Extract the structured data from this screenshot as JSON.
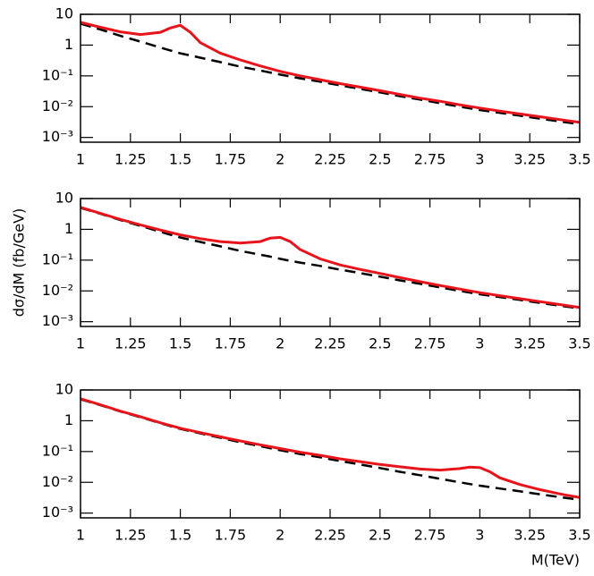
{
  "chart_data": [
    {
      "type": "line",
      "x": [
        1,
        1.1,
        1.2,
        1.3,
        1.4,
        1.45,
        1.5,
        1.55,
        1.6,
        1.7,
        1.8,
        1.9,
        2.0,
        2.1,
        2.2,
        2.3,
        2.4,
        2.5,
        2.6,
        2.7,
        2.8,
        2.9,
        3.0,
        3.1,
        3.2,
        3.3,
        3.4,
        3.5
      ],
      "series": [
        {
          "color": "#000000",
          "dashed": true,
          "values": [
            5.0,
            3.2,
            2.0,
            1.3,
            0.83,
            0.67,
            0.54,
            0.46,
            0.39,
            0.28,
            0.2,
            0.15,
            0.11,
            0.083,
            0.065,
            0.049,
            0.038,
            0.029,
            0.022,
            0.017,
            0.013,
            0.01,
            0.0078,
            0.0063,
            0.0051,
            0.0041,
            0.0033,
            0.0027
          ]
        },
        {
          "color": "#e8141c",
          "dashed": false,
          "values": [
            5.5,
            3.8,
            2.7,
            2.2,
            2.6,
            3.6,
            4.4,
            2.6,
            1.2,
            0.55,
            0.33,
            0.21,
            0.14,
            0.1,
            0.075,
            0.056,
            0.043,
            0.033,
            0.025,
            0.019,
            0.015,
            0.0115,
            0.009,
            0.0072,
            0.0058,
            0.0047,
            0.0038,
            0.0031
          ]
        }
      ],
      "xlim": [
        1,
        3.5
      ],
      "xticks": [
        1,
        1.25,
        1.5,
        1.75,
        2,
        2.25,
        2.5,
        2.75,
        3,
        3.25,
        3.5
      ],
      "ylim": [
        0.0007,
        10
      ],
      "log_y": true,
      "yticks": [
        10,
        1,
        {
          "value": 0.1,
          "label": "10⁻¹"
        },
        {
          "value": 0.01,
          "label": "10⁻²"
        },
        {
          "value": 0.001,
          "label": "10⁻³"
        }
      ]
    },
    {
      "type": "line",
      "x": [
        1,
        1.1,
        1.2,
        1.3,
        1.4,
        1.5,
        1.6,
        1.7,
        1.8,
        1.9,
        1.95,
        2.0,
        2.05,
        2.1,
        2.2,
        2.3,
        2.4,
        2.5,
        2.6,
        2.7,
        2.8,
        2.9,
        3.0,
        3.1,
        3.2,
        3.3,
        3.4,
        3.5
      ],
      "series": [
        {
          "color": "#000000",
          "dashed": true,
          "values": [
            5.0,
            3.2,
            2.0,
            1.3,
            0.83,
            0.54,
            0.39,
            0.28,
            0.2,
            0.15,
            0.13,
            0.11,
            0.095,
            0.083,
            0.065,
            0.049,
            0.038,
            0.029,
            0.022,
            0.017,
            0.013,
            0.01,
            0.0078,
            0.0063,
            0.0051,
            0.0041,
            0.0033,
            0.0027
          ]
        },
        {
          "color": "#e8141c",
          "dashed": false,
          "values": [
            5.2,
            3.3,
            2.1,
            1.4,
            0.95,
            0.66,
            0.5,
            0.4,
            0.36,
            0.4,
            0.52,
            0.55,
            0.4,
            0.22,
            0.11,
            0.07,
            0.05,
            0.037,
            0.027,
            0.02,
            0.015,
            0.0115,
            0.0088,
            0.007,
            0.0056,
            0.0045,
            0.0036,
            0.0029
          ]
        }
      ],
      "ylabel": "dσ/dM (fb/GeV)",
      "xlim": [
        1,
        3.5
      ],
      "xticks": [
        1,
        1.25,
        1.5,
        1.75,
        2,
        2.25,
        2.5,
        2.75,
        3,
        3.25,
        3.5
      ],
      "ylim": [
        0.0007,
        10
      ],
      "log_y": true,
      "yticks": [
        10,
        1,
        {
          "value": 0.1,
          "label": "10⁻¹"
        },
        {
          "value": 0.01,
          "label": "10⁻²"
        },
        {
          "value": 0.001,
          "label": "10⁻³"
        }
      ]
    },
    {
      "type": "line",
      "x": [
        1,
        1.1,
        1.2,
        1.3,
        1.4,
        1.5,
        1.6,
        1.7,
        1.8,
        1.9,
        2.0,
        2.1,
        2.2,
        2.3,
        2.4,
        2.5,
        2.6,
        2.7,
        2.8,
        2.9,
        2.95,
        3.0,
        3.05,
        3.1,
        3.2,
        3.3,
        3.4,
        3.5
      ],
      "series": [
        {
          "color": "#000000",
          "dashed": true,
          "values": [
            5.0,
            3.2,
            2.0,
            1.3,
            0.83,
            0.54,
            0.39,
            0.28,
            0.2,
            0.15,
            0.11,
            0.083,
            0.065,
            0.049,
            0.038,
            0.029,
            0.022,
            0.017,
            0.013,
            0.01,
            0.0088,
            0.0078,
            0.007,
            0.0063,
            0.0051,
            0.0041,
            0.0033,
            0.0027
          ]
        },
        {
          "color": "#e8141c",
          "dashed": false,
          "values": [
            5.2,
            3.3,
            2.05,
            1.35,
            0.86,
            0.57,
            0.41,
            0.3,
            0.22,
            0.165,
            0.125,
            0.095,
            0.075,
            0.058,
            0.047,
            0.038,
            0.032,
            0.027,
            0.025,
            0.028,
            0.031,
            0.03,
            0.022,
            0.014,
            0.0085,
            0.0058,
            0.0042,
            0.0032
          ]
        }
      ],
      "xlabel": "M(TeV)",
      "xlim": [
        1,
        3.5
      ],
      "xticks": [
        1,
        1.25,
        1.5,
        1.75,
        2,
        2.25,
        2.5,
        2.75,
        3,
        3.25,
        3.5
      ],
      "ylim": [
        0.0007,
        10
      ],
      "log_y": true,
      "yticks": [
        10,
        1,
        {
          "value": 0.1,
          "label": "10⁻¹"
        },
        {
          "value": 0.01,
          "label": "10⁻²"
        },
        {
          "value": 0.001,
          "label": "10⁻³"
        }
      ]
    }
  ]
}
